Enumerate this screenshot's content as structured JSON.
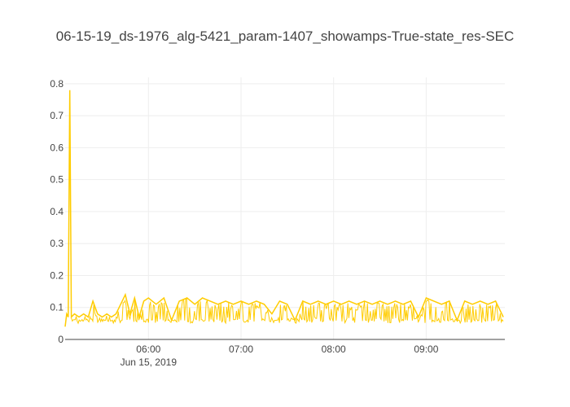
{
  "chart_data": {
    "type": "line",
    "title": "06-15-19_ds-1976_alg-5421_param-1407_showamps-True-state_res-SEC",
    "xlabel": "",
    "ylabel": "",
    "x_range": [
      "2019-06-15 05:06",
      "2019-06-15 09:51"
    ],
    "ylim": [
      0,
      0.82
    ],
    "x_ticks": [
      {
        "t": "2019-06-15 06:00",
        "label": "06:00",
        "sublabel": "Jun 15, 2019"
      },
      {
        "t": "2019-06-15 07:00",
        "label": "07:00"
      },
      {
        "t": "2019-06-15 08:00",
        "label": "08:00"
      },
      {
        "t": "2019-06-15 09:00",
        "label": "09:00"
      }
    ],
    "y_ticks": [
      0,
      0.1,
      0.2,
      0.3,
      0.4,
      0.5,
      0.6,
      0.7,
      0.8
    ],
    "y_tick_labels": [
      "0",
      "0.1",
      "0.2",
      "0.3",
      "0.4",
      "0.5",
      "0.6",
      "0.7",
      "0.8"
    ],
    "grid": true,
    "legend": "none",
    "series": [
      {
        "color": "#ffcc00",
        "x": [
          "2019-06-15 05:06",
          "2019-06-15 05:07",
          "2019-06-15 05:08",
          "2019-06-15 05:09",
          "2019-06-15 05:10",
          "2019-06-15 05:12",
          "2019-06-15 05:15",
          "2019-06-15 05:18",
          "2019-06-15 05:21",
          "2019-06-15 05:24",
          "2019-06-15 05:27",
          "2019-06-15 05:30",
          "2019-06-15 05:33",
          "2019-06-15 05:36",
          "2019-06-15 05:39",
          "2019-06-15 05:42",
          "2019-06-15 05:45",
          "2019-06-15 05:48",
          "2019-06-15 05:51",
          "2019-06-15 05:54",
          "2019-06-15 05:57",
          "2019-06-15 06:00",
          "2019-06-15 06:05",
          "2019-06-15 06:10",
          "2019-06-15 06:15",
          "2019-06-15 06:20",
          "2019-06-15 06:25",
          "2019-06-15 06:30",
          "2019-06-15 06:35",
          "2019-06-15 06:40",
          "2019-06-15 06:45",
          "2019-06-15 06:50",
          "2019-06-15 06:55",
          "2019-06-15 07:00",
          "2019-06-15 07:05",
          "2019-06-15 07:10",
          "2019-06-15 07:15",
          "2019-06-15 07:20",
          "2019-06-15 07:25",
          "2019-06-15 07:30",
          "2019-06-15 07:35",
          "2019-06-15 07:40",
          "2019-06-15 07:45",
          "2019-06-15 07:50",
          "2019-06-15 07:55",
          "2019-06-15 08:00",
          "2019-06-15 08:05",
          "2019-06-15 08:10",
          "2019-06-15 08:15",
          "2019-06-15 08:20",
          "2019-06-15 08:25",
          "2019-06-15 08:30",
          "2019-06-15 08:35",
          "2019-06-15 08:40",
          "2019-06-15 08:45",
          "2019-06-15 08:50",
          "2019-06-15 08:55",
          "2019-06-15 09:00",
          "2019-06-15 09:05",
          "2019-06-15 09:10",
          "2019-06-15 09:15",
          "2019-06-15 09:20",
          "2019-06-15 09:25",
          "2019-06-15 09:30",
          "2019-06-15 09:35",
          "2019-06-15 09:40",
          "2019-06-15 09:45",
          "2019-06-15 09:50"
        ],
        "y": [
          0.04,
          0.08,
          0.07,
          0.78,
          0.07,
          0.08,
          0.07,
          0.08,
          0.07,
          0.12,
          0.08,
          0.07,
          0.08,
          0.07,
          0.08,
          0.11,
          0.14,
          0.08,
          0.13,
          0.07,
          0.12,
          0.13,
          0.11,
          0.13,
          0.06,
          0.12,
          0.13,
          0.11,
          0.13,
          0.12,
          0.11,
          0.12,
          0.11,
          0.12,
          0.11,
          0.12,
          0.11,
          0.08,
          0.12,
          0.11,
          0.06,
          0.12,
          0.11,
          0.12,
          0.11,
          0.12,
          0.11,
          0.12,
          0.11,
          0.12,
          0.11,
          0.12,
          0.11,
          0.12,
          0.11,
          0.12,
          0.07,
          0.13,
          0.12,
          0.11,
          0.12,
          0.06,
          0.12,
          0.11,
          0.12,
          0.11,
          0.12,
          0.07
        ]
      }
    ]
  }
}
